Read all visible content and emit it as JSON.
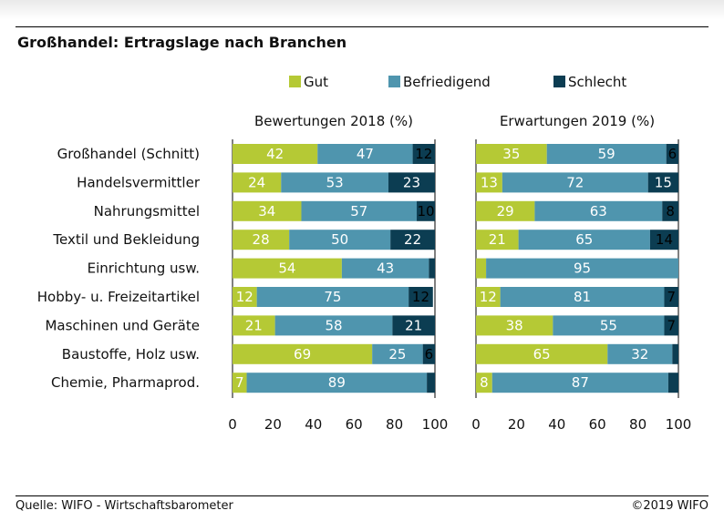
{
  "title": "Großhandel: Ertragslage nach Branchen",
  "footer": {
    "source": "Quelle: WIFO - Wirtschaftsbarometer",
    "copyright": "©2019 WIFO"
  },
  "colors": {
    "Gut": "#b5c935",
    "Befriedigend": "#4f95ae",
    "Schlecht": "#0c3d52",
    "label_light": "#ffffff",
    "label_dark": "#000000"
  },
  "chart_data": {
    "type": "bar",
    "orientation": "horizontal",
    "stacked": true,
    "categories": [
      "Großhandel (Schnitt)",
      "Handelsvermittler",
      "Nahrungsmittel",
      "Textil und Bekleidung",
      "Einrichtung usw.",
      "Hobby- u. Freizeitartikel",
      "Maschinen und Geräte",
      "Baustoffe, Holz usw.",
      "Chemie, Pharmaprod."
    ],
    "legend": [
      "Gut",
      "Befriedigend",
      "Schlecht"
    ],
    "legend_position": "top",
    "xlim": [
      0,
      100
    ],
    "xticks": [
      "0",
      "20",
      "40",
      "60",
      "80",
      "100"
    ],
    "panels": [
      {
        "title": "Bewertungen 2018 (%)",
        "series": [
          {
            "name": "Gut",
            "values": [
              42,
              24,
              34,
              28,
              54,
              12,
              21,
              69,
              7
            ]
          },
          {
            "name": "Befriedigend",
            "values": [
              47,
              53,
              57,
              50,
              43,
              75,
              58,
              25,
              89
            ]
          },
          {
            "name": "Schlecht",
            "values": [
              12,
              23,
              10,
              22,
              3,
              12,
              21,
              6,
              4
            ]
          }
        ],
        "labels": [
          [
            "42",
            "47",
            "12"
          ],
          [
            "24",
            "53",
            "23"
          ],
          [
            "34",
            "57",
            "10"
          ],
          [
            "28",
            "50",
            "22"
          ],
          [
            "54",
            "43",
            ""
          ],
          [
            "12",
            "75",
            "12"
          ],
          [
            "21",
            "58",
            "21"
          ],
          [
            "69",
            "25",
            "6"
          ],
          [
            "7",
            "89",
            ""
          ]
        ]
      },
      {
        "title": "Erwartungen 2019 (%)",
        "series": [
          {
            "name": "Gut",
            "values": [
              35,
              13,
              29,
              21,
              5,
              12,
              38,
              65,
              8
            ]
          },
          {
            "name": "Befriedigend",
            "values": [
              59,
              72,
              63,
              65,
              95,
              81,
              55,
              32,
              87
            ]
          },
          {
            "name": "Schlecht",
            "values": [
              6,
              15,
              8,
              14,
              0,
              7,
              7,
              3,
              5
            ]
          }
        ],
        "labels": [
          [
            "35",
            "59",
            "6"
          ],
          [
            "13",
            "72",
            "15"
          ],
          [
            "29",
            "63",
            "8"
          ],
          [
            "21",
            "65",
            "14"
          ],
          [
            "",
            "95",
            ""
          ],
          [
            "12",
            "81",
            "7"
          ],
          [
            "38",
            "55",
            "7"
          ],
          [
            "65",
            "32",
            ""
          ],
          [
            "8",
            "87",
            ""
          ]
        ]
      }
    ]
  }
}
